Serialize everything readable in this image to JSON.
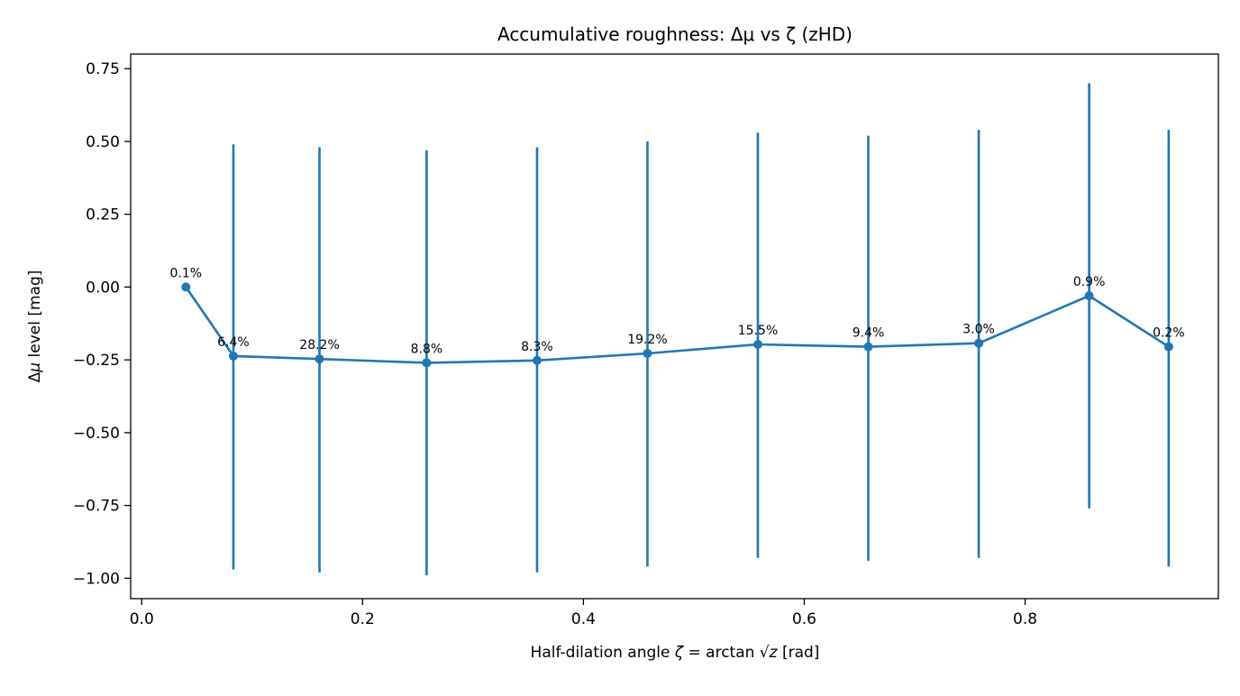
{
  "chart_data": {
    "type": "line",
    "title": "Accumulative roughness: Δμ vs ζ (zHD)",
    "xlabel": "Half-dilation angle ζ = arctan √z  [rad]",
    "ylabel": "Δμ level  [mag]",
    "xlim": [
      -0.01,
      0.975
    ],
    "ylim": [
      -1.07,
      0.8
    ],
    "xticks": [
      0.0,
      0.2,
      0.4,
      0.6,
      0.8
    ],
    "xtick_labels": [
      "0.0",
      "0.2",
      "0.4",
      "0.6",
      "0.8"
    ],
    "yticks": [
      0.75,
      0.5,
      0.25,
      0.0,
      -0.25,
      -0.5,
      -0.75,
      -1.0
    ],
    "ytick_labels": [
      "0.75",
      "0.50",
      "0.25",
      "0.00",
      "−0.25",
      "−0.50",
      "−0.75",
      "−1.00"
    ],
    "grid": false,
    "color": "#1f77b4",
    "points": [
      {
        "x": 0.04,
        "y": 0.0,
        "yerr_low": null,
        "yerr_high": null,
        "label": "0.1%"
      },
      {
        "x": 0.083,
        "y": -0.237,
        "yerr_low": -0.97,
        "yerr_high": 0.49,
        "label": "6.4%"
      },
      {
        "x": 0.161,
        "y": -0.247,
        "yerr_low": -0.98,
        "yerr_high": 0.48,
        "label": "28.2%"
      },
      {
        "x": 0.258,
        "y": -0.26,
        "yerr_low": -0.99,
        "yerr_high": 0.47,
        "label": "8.8%"
      },
      {
        "x": 0.358,
        "y": -0.252,
        "yerr_low": -0.98,
        "yerr_high": 0.48,
        "label": "8.3%"
      },
      {
        "x": 0.458,
        "y": -0.228,
        "yerr_low": -0.96,
        "yerr_high": 0.5,
        "label": "19.2%"
      },
      {
        "x": 0.558,
        "y": -0.197,
        "yerr_low": -0.93,
        "yerr_high": 0.53,
        "label": "15.5%"
      },
      {
        "x": 0.658,
        "y": -0.205,
        "yerr_low": -0.94,
        "yerr_high": 0.52,
        "label": "9.4%"
      },
      {
        "x": 0.758,
        "y": -0.193,
        "yerr_low": -0.93,
        "yerr_high": 0.54,
        "label": "3.0%"
      },
      {
        "x": 0.858,
        "y": -0.03,
        "yerr_low": -0.76,
        "yerr_high": 0.7,
        "label": "0.9%"
      },
      {
        "x": 0.93,
        "y": -0.205,
        "yerr_low": -0.96,
        "yerr_high": 0.54,
        "label": "0.2%"
      }
    ]
  }
}
